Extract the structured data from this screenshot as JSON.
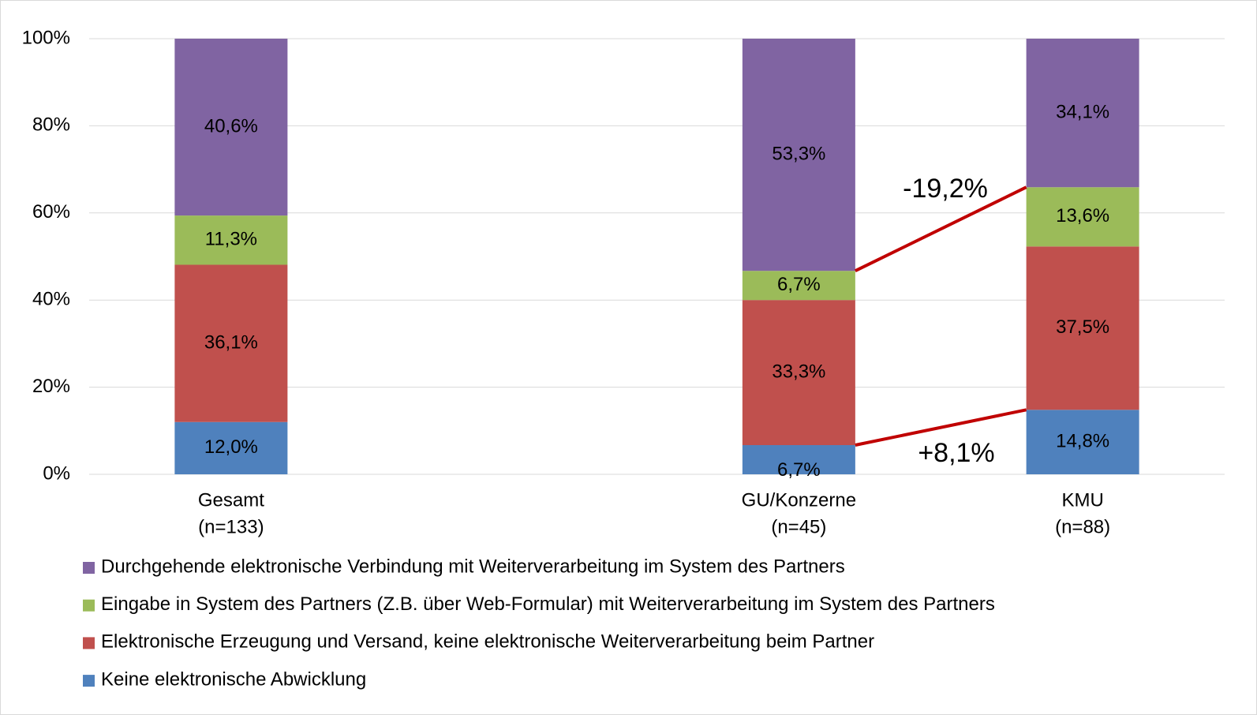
{
  "chart_data": {
    "type": "stacked_bar",
    "categories": [
      [
        "Gesamt",
        "(n=133)"
      ],
      null,
      [
        "GU/Konzerne",
        "(n=45)"
      ],
      [
        "KMU",
        "(n=88)"
      ]
    ],
    "series": [
      {
        "name": "Keine elektronische Abwicklung",
        "color": "#4f81bd",
        "values": [
          12.0,
          null,
          6.7,
          14.8
        ],
        "value_labels": [
          "12,0%",
          null,
          "6,7%",
          "14,8%"
        ]
      },
      {
        "name": "Elektronische Erzeugung und Versand, keine elektronische Weiterverarbeitung beim Partner",
        "color": "#c0504d",
        "values": [
          36.1,
          null,
          33.3,
          37.5
        ],
        "value_labels": [
          "36,1%",
          null,
          "33,3%",
          "37,5%"
        ]
      },
      {
        "name": "Eingabe in System des Partners (Z.B. über Web-Formular) mit Weiterverarbeitung im System des Partners",
        "color": "#9bbb59",
        "values": [
          11.3,
          null,
          6.7,
          13.6
        ],
        "value_labels": [
          "11,3%",
          null,
          "6,7%",
          "13,6%"
        ]
      },
      {
        "name": "Durchgehende elektronische Verbindung mit Weiterverarbeitung im System des Partners",
        "color": "#8064a2",
        "values": [
          40.6,
          null,
          53.3,
          34.1
        ],
        "value_labels": [
          "40,6%",
          null,
          "53,3%",
          "34,1%"
        ]
      }
    ],
    "ylim": [
      0,
      100
    ],
    "yticks": [
      {
        "value": 0,
        "label": "0%"
      },
      {
        "value": 20,
        "label": "20%"
      },
      {
        "value": 40,
        "label": "40%"
      },
      {
        "value": 60,
        "label": "60%"
      },
      {
        "value": 80,
        "label": "80%"
      },
      {
        "value": 100,
        "label": "100%"
      }
    ],
    "grid": true,
    "legend": "bottom",
    "annotations": [
      "-19,2%",
      "+8,1%"
    ],
    "annotation_color": "#c00000"
  }
}
